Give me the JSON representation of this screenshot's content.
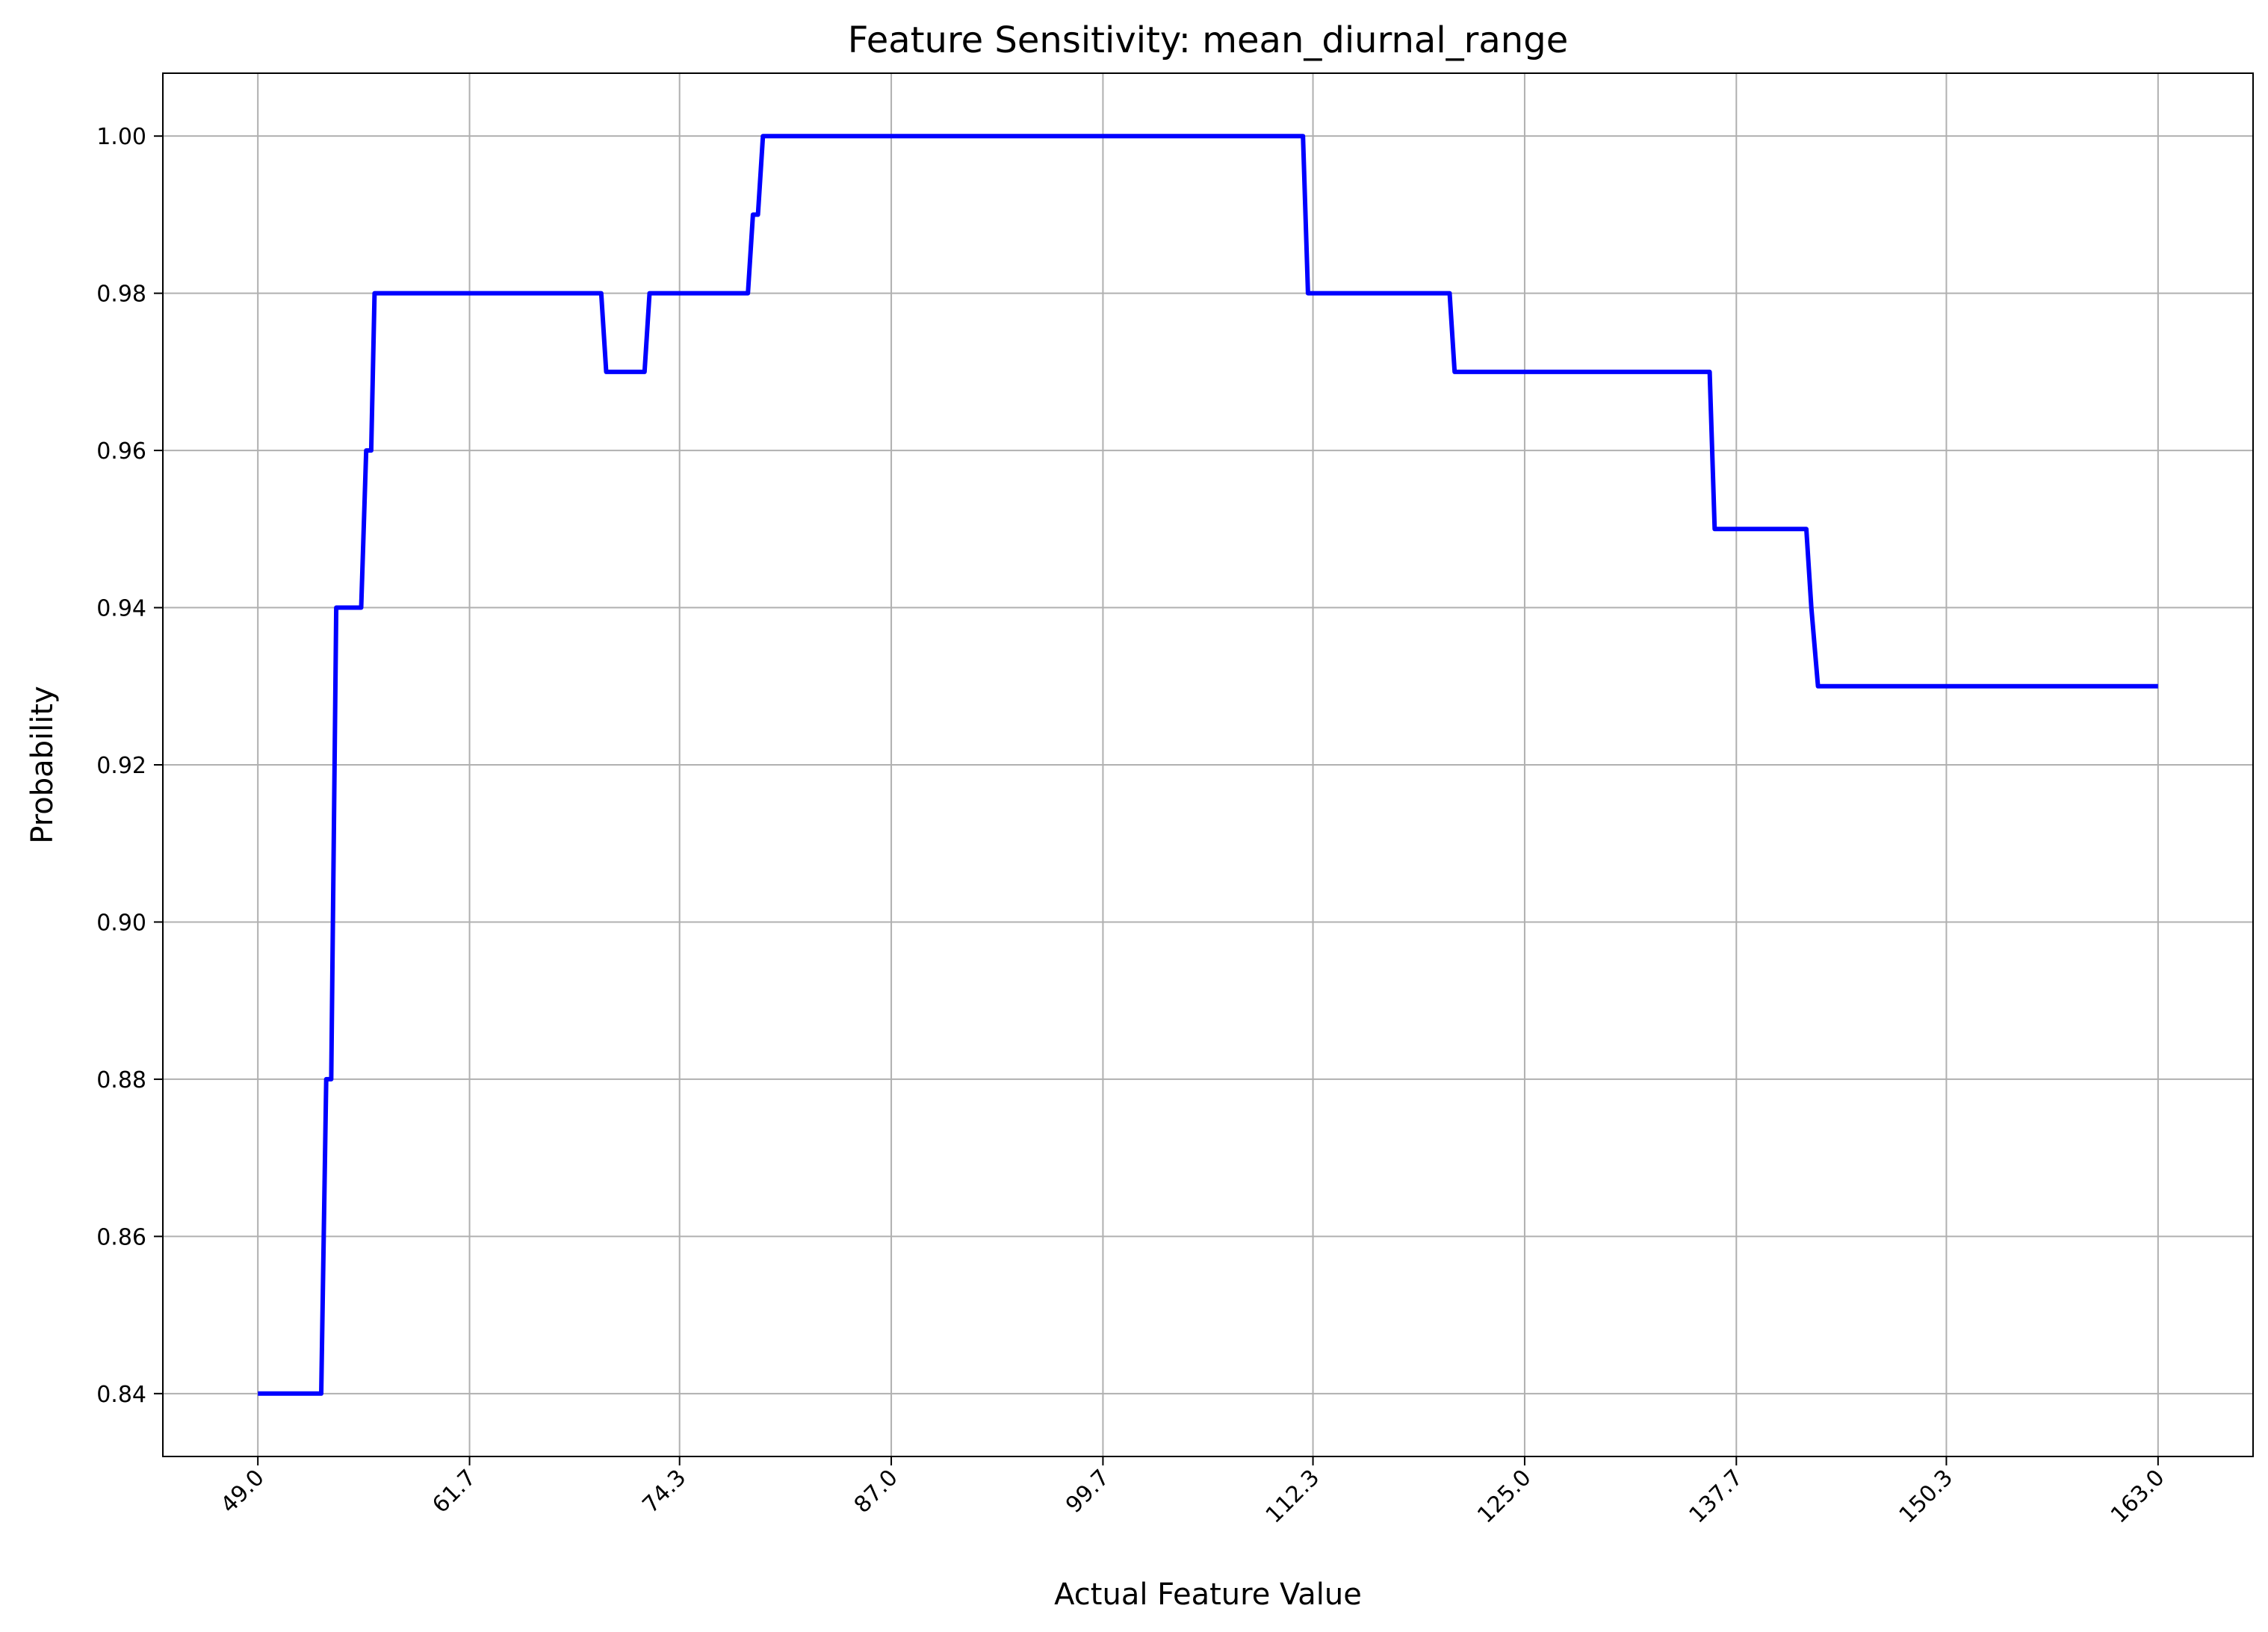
{
  "chart_data": {
    "type": "line",
    "title": "Feature Sensitivity: mean_diurnal_range",
    "xlabel": "Actual Feature Value",
    "ylabel": "Probability",
    "xlim": [
      43.3,
      168.7
    ],
    "ylim": [
      0.832,
      1.008
    ],
    "x_ticks": [
      49.0,
      61.7,
      74.3,
      87.0,
      99.7,
      112.3,
      125.0,
      137.7,
      150.3,
      163.0
    ],
    "x_tick_labels": [
      "49.0",
      "61.7",
      "74.3",
      "87.0",
      "99.7",
      "112.3",
      "125.0",
      "137.7",
      "150.3",
      "163.0"
    ],
    "y_ticks": [
      0.84,
      0.86,
      0.88,
      0.9,
      0.92,
      0.94,
      0.96,
      0.98,
      1.0
    ],
    "y_tick_labels": [
      "0.84",
      "0.86",
      "0.88",
      "0.90",
      "0.92",
      "0.94",
      "0.96",
      "0.98",
      "1.00"
    ],
    "grid": true,
    "line_color": "#0000ff",
    "grid_color": "#b0b0b0",
    "series": [
      {
        "x": [
          49.0,
          52.8,
          53.1,
          53.4,
          53.7,
          55.2,
          55.5,
          55.8,
          56.0,
          69.6,
          69.9,
          72.2,
          72.5,
          78.4,
          78.7,
          79.0,
          79.3,
          111.7,
          112.0,
          120.5,
          120.8,
          136.1,
          136.4,
          141.9,
          142.2,
          142.6,
          163.0
        ],
        "y": [
          0.84,
          0.84,
          0.88,
          0.88,
          0.94,
          0.94,
          0.96,
          0.96,
          0.98,
          0.98,
          0.97,
          0.97,
          0.98,
          0.98,
          0.99,
          0.99,
          1.0,
          1.0,
          0.98,
          0.98,
          0.97,
          0.97,
          0.95,
          0.95,
          0.94,
          0.93,
          0.93
        ]
      }
    ]
  }
}
